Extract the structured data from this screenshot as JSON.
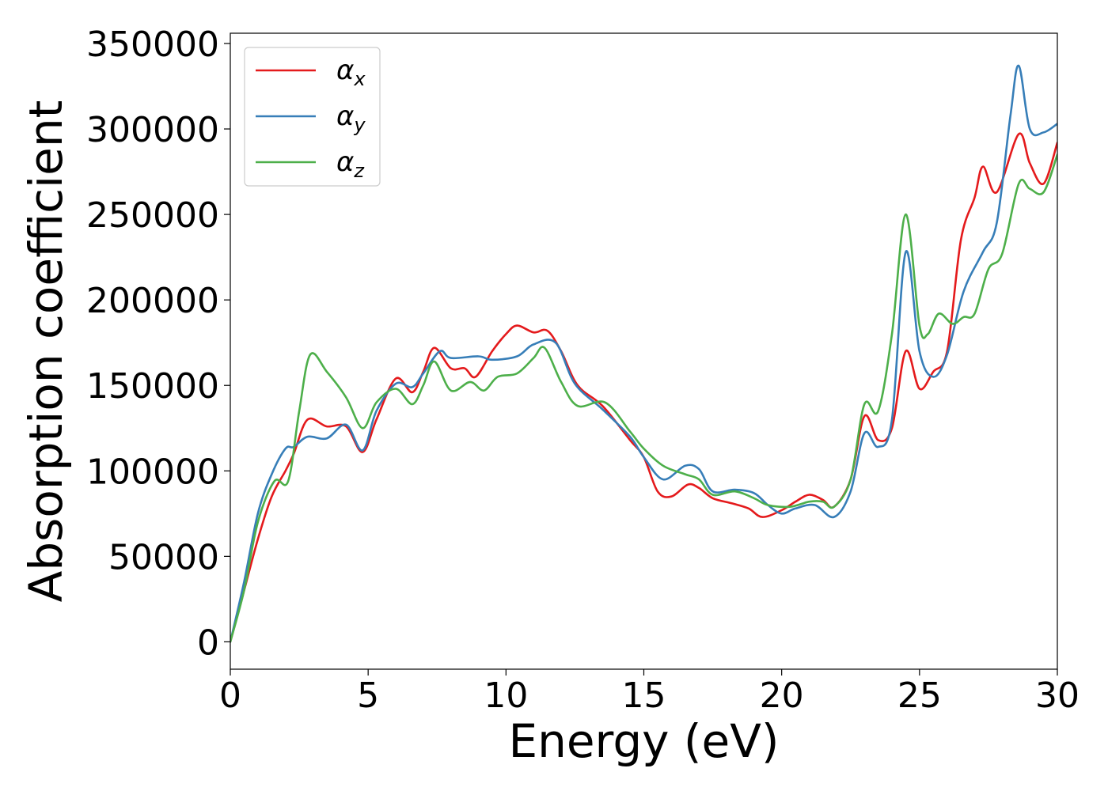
{
  "chart_data": {
    "type": "line",
    "xlabel": "Energy (eV)",
    "ylabel": "Absorption coefficient",
    "xlim": [
      0,
      30
    ],
    "ylim": [
      -16000,
      356000
    ],
    "xticks": [
      0,
      5,
      10,
      15,
      20,
      25,
      30
    ],
    "xtick_labels": [
      "0",
      "5",
      "10",
      "15",
      "20",
      "25",
      "30"
    ],
    "yticks": [
      0,
      50000,
      100000,
      150000,
      200000,
      250000,
      300000,
      350000
    ],
    "ytick_labels": [
      "0",
      "50000",
      "100000",
      "150000",
      "200000",
      "250000",
      "300000",
      "350000"
    ],
    "grid": false,
    "legend_position": "top-left",
    "series": [
      {
        "name": "αx",
        "symbol": "α",
        "subscript": "x",
        "color": "#e41a1c",
        "points": [
          [
            0,
            0
          ],
          [
            0.5,
            30000
          ],
          [
            1,
            60000
          ],
          [
            1.5,
            85000
          ],
          [
            2,
            100000
          ],
          [
            2.3,
            110000
          ],
          [
            2.8,
            130000
          ],
          [
            3.5,
            126000
          ],
          [
            4.2,
            126000
          ],
          [
            4.8,
            111000
          ],
          [
            5.3,
            130000
          ],
          [
            6,
            154000
          ],
          [
            6.6,
            146000
          ],
          [
            7,
            158000
          ],
          [
            7.4,
            172000
          ],
          [
            8,
            160000
          ],
          [
            8.5,
            160000
          ],
          [
            8.9,
            155000
          ],
          [
            9.5,
            170000
          ],
          [
            10,
            180000
          ],
          [
            10.4,
            185000
          ],
          [
            11,
            181000
          ],
          [
            11.5,
            182000
          ],
          [
            12,
            170000
          ],
          [
            12.6,
            150000
          ],
          [
            13.5,
            138000
          ],
          [
            14.5,
            118000
          ],
          [
            15,
            108000
          ],
          [
            15.5,
            88000
          ],
          [
            16,
            85000
          ],
          [
            16.6,
            92000
          ],
          [
            17,
            90000
          ],
          [
            17.5,
            84000
          ],
          [
            18.2,
            81000
          ],
          [
            18.8,
            78000
          ],
          [
            19.3,
            73000
          ],
          [
            20,
            77000
          ],
          [
            20.5,
            82000
          ],
          [
            21,
            86000
          ],
          [
            21.5,
            83000
          ],
          [
            21.9,
            79000
          ],
          [
            22.5,
            95000
          ],
          [
            23,
            132000
          ],
          [
            23.5,
            118000
          ],
          [
            24,
            125000
          ],
          [
            24.5,
            170000
          ],
          [
            25,
            148000
          ],
          [
            25.5,
            158000
          ],
          [
            26,
            170000
          ],
          [
            26.5,
            235000
          ],
          [
            27,
            260000
          ],
          [
            27.3,
            278000
          ],
          [
            27.8,
            263000
          ],
          [
            28.6,
            297000
          ],
          [
            29,
            280000
          ],
          [
            29.5,
            268000
          ],
          [
            30,
            292000
          ]
        ]
      },
      {
        "name": "αy",
        "symbol": "α",
        "subscript": "y",
        "color": "#377eb8",
        "points": [
          [
            0,
            0
          ],
          [
            0.5,
            35000
          ],
          [
            1,
            75000
          ],
          [
            1.5,
            98000
          ],
          [
            2,
            113000
          ],
          [
            2.3,
            114000
          ],
          [
            2.8,
            120000
          ],
          [
            3.5,
            119000
          ],
          [
            4.2,
            127000
          ],
          [
            4.8,
            112000
          ],
          [
            5.3,
            135000
          ],
          [
            6,
            151000
          ],
          [
            6.6,
            149000
          ],
          [
            7,
            157000
          ],
          [
            7.6,
            170000
          ],
          [
            8,
            166000
          ],
          [
            9,
            167000
          ],
          [
            9.5,
            165000
          ],
          [
            10.4,
            167000
          ],
          [
            11,
            174000
          ],
          [
            11.8,
            175000
          ],
          [
            12.5,
            151000
          ],
          [
            13.5,
            136000
          ],
          [
            14.5,
            120000
          ],
          [
            15,
            108000
          ],
          [
            15.7,
            95000
          ],
          [
            16.5,
            103000
          ],
          [
            17,
            101000
          ],
          [
            17.5,
            88000
          ],
          [
            18.3,
            89000
          ],
          [
            19,
            87000
          ],
          [
            19.5,
            80000
          ],
          [
            20,
            75000
          ],
          [
            20.5,
            78000
          ],
          [
            21.2,
            80000
          ],
          [
            21.9,
            73000
          ],
          [
            22.5,
            88000
          ],
          [
            23,
            122000
          ],
          [
            23.5,
            114000
          ],
          [
            24,
            130000
          ],
          [
            24.5,
            228000
          ],
          [
            25,
            170000
          ],
          [
            25.5,
            155000
          ],
          [
            26,
            168000
          ],
          [
            26.6,
            205000
          ],
          [
            27.3,
            228000
          ],
          [
            27.8,
            245000
          ],
          [
            28.3,
            308000
          ],
          [
            28.6,
            337000
          ],
          [
            29,
            300000
          ],
          [
            29.5,
            298000
          ],
          [
            30,
            303000
          ]
        ]
      },
      {
        "name": "αz",
        "symbol": "α",
        "subscript": "z",
        "color": "#4daf4a",
        "points": [
          [
            0,
            0
          ],
          [
            0.5,
            30000
          ],
          [
            1,
            70000
          ],
          [
            1.6,
            94000
          ],
          [
            2.1,
            94000
          ],
          [
            2.5,
            135000
          ],
          [
            2.9,
            168000
          ],
          [
            3.5,
            158000
          ],
          [
            4.2,
            143000
          ],
          [
            4.8,
            125000
          ],
          [
            5.3,
            140000
          ],
          [
            6,
            148000
          ],
          [
            6.6,
            139000
          ],
          [
            7,
            150000
          ],
          [
            7.4,
            164000
          ],
          [
            8,
            147000
          ],
          [
            8.7,
            152000
          ],
          [
            9.2,
            147000
          ],
          [
            9.7,
            155000
          ],
          [
            10.4,
            157000
          ],
          [
            11,
            166000
          ],
          [
            11.4,
            172000
          ],
          [
            12,
            152000
          ],
          [
            12.6,
            138000
          ],
          [
            13.6,
            140000
          ],
          [
            14.5,
            123000
          ],
          [
            15,
            113000
          ],
          [
            15.7,
            103000
          ],
          [
            16.5,
            98000
          ],
          [
            17,
            95000
          ],
          [
            17.5,
            86000
          ],
          [
            18.3,
            88000
          ],
          [
            19,
            84000
          ],
          [
            19.5,
            80000
          ],
          [
            20.3,
            79000
          ],
          [
            21,
            82000
          ],
          [
            21.5,
            82000
          ],
          [
            21.9,
            79000
          ],
          [
            22.5,
            95000
          ],
          [
            23,
            139000
          ],
          [
            23.5,
            135000
          ],
          [
            24,
            180000
          ],
          [
            24.5,
            250000
          ],
          [
            25,
            185000
          ],
          [
            25.3,
            180000
          ],
          [
            25.7,
            192000
          ],
          [
            26.2,
            186000
          ],
          [
            26.6,
            190000
          ],
          [
            27,
            192000
          ],
          [
            27.5,
            218000
          ],
          [
            28,
            227000
          ],
          [
            28.6,
            268000
          ],
          [
            29,
            265000
          ],
          [
            29.5,
            263000
          ],
          [
            30,
            285000
          ]
        ]
      }
    ]
  }
}
